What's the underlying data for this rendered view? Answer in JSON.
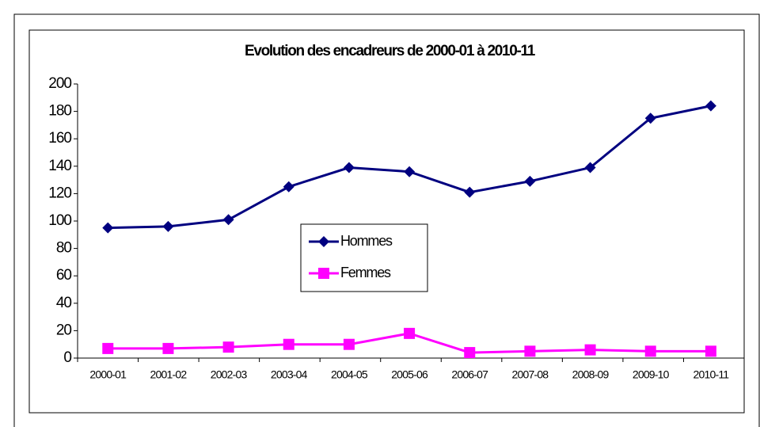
{
  "chart_data": {
    "type": "line",
    "title": "Evolution des encadreurs de 2000-01 à 2010-11",
    "categories": [
      "2000-01",
      "2001-02",
      "2002-03",
      "2003-04",
      "2004-05",
      "2005-06",
      "2006-07",
      "2007-08",
      "2008-09",
      "2009-10",
      "2010-11"
    ],
    "series": [
      {
        "name": "Hommes",
        "color": "#000080",
        "marker": "diamond",
        "values": [
          95,
          96,
          101,
          125,
          139,
          136,
          121,
          129,
          139,
          175,
          184
        ]
      },
      {
        "name": "Femmes",
        "color": "#ff00ff",
        "marker": "square",
        "values": [
          7,
          7,
          8,
          10,
          10,
          18,
          4,
          5,
          6,
          5,
          5
        ]
      }
    ],
    "ylim": [
      0,
      200
    ],
    "yticks": [
      0,
      20,
      40,
      60,
      80,
      100,
      120,
      140,
      160,
      180,
      200
    ],
    "grid": false,
    "legend": "center"
  }
}
